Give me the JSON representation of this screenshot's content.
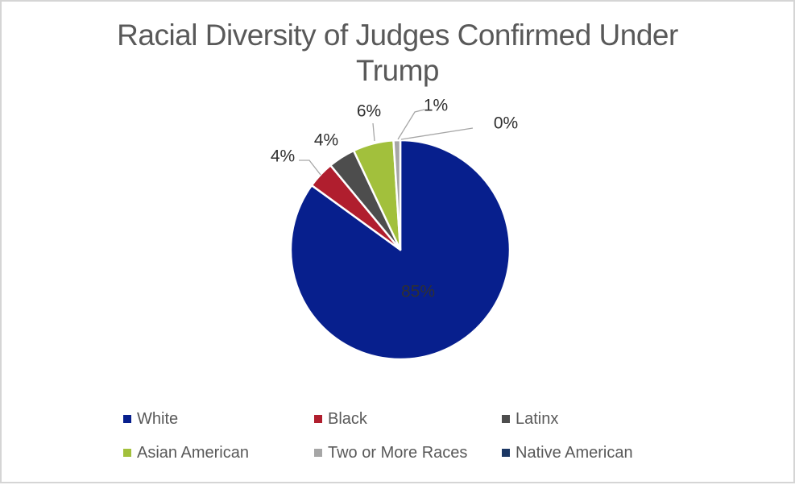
{
  "frame": {
    "background_color": "#FFFFFF",
    "border_color": "#D5D5D5"
  },
  "chart_data": {
    "type": "pie",
    "title": "Racial Diversity of Judges Confirmed Under Trump",
    "start_angle_deg": 0,
    "direction": "clockwise",
    "legend_position": "bottom",
    "legend_columns": 3,
    "slices": [
      {
        "label": "White",
        "value": 85,
        "display": "85%",
        "color": "#071F8D"
      },
      {
        "label": "Black",
        "value": 4,
        "display": "4%",
        "color": "#B01E2E"
      },
      {
        "label": "Latinx",
        "value": 4,
        "display": "4%",
        "color": "#4D4D4D"
      },
      {
        "label": "Asian American",
        "value": 6,
        "display": "6%",
        "color": "#A2C03C"
      },
      {
        "label": "Two or More Races",
        "value": 1,
        "display": "1%",
        "color": "#A6A6A6"
      },
      {
        "label": "Native American",
        "value": 0,
        "display": "0%",
        "color": "#1B3764"
      }
    ],
    "inside_label_color": "#FFFFFF",
    "outside_label_color": "#303030",
    "leader_line_color": "#A6A6A6",
    "title_color": "#595959",
    "legend_text_color": "#595959"
  }
}
